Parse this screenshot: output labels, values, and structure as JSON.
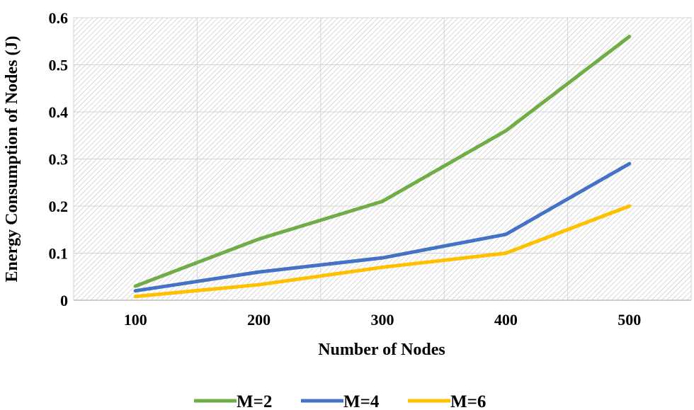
{
  "chart_data": {
    "type": "line",
    "title": "",
    "xlabel": "Number of Nodes",
    "ylabel": "Energy Consumption of Nodes (J)",
    "categories": [
      "100",
      "200",
      "300",
      "400",
      "500"
    ],
    "ylim": [
      0,
      0.6
    ],
    "yticks": [
      "0",
      "0.1",
      "0.2",
      "0.3",
      "0.4",
      "0.5",
      "0.6"
    ],
    "grid": true,
    "legend_position": "bottom",
    "series": [
      {
        "name": "M=2",
        "color": "#70ad47",
        "values": [
          0.03,
          0.13,
          0.21,
          0.36,
          0.56
        ]
      },
      {
        "name": "M=4",
        "color": "#4472c4",
        "values": [
          0.02,
          0.06,
          0.09,
          0.14,
          0.29
        ]
      },
      {
        "name": "M=6",
        "color": "#ffc000",
        "values": [
          0.008,
          0.033,
          0.07,
          0.1,
          0.2
        ]
      }
    ]
  }
}
